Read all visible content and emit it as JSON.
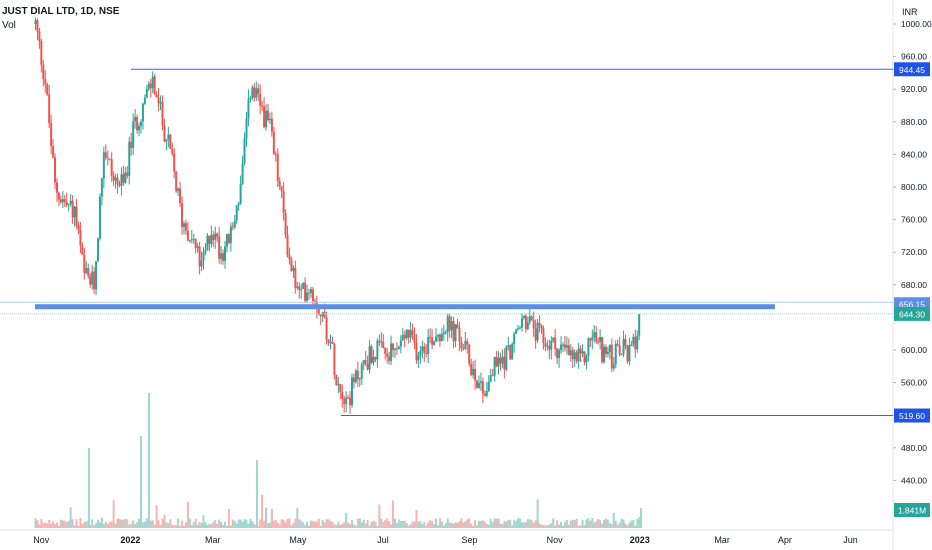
{
  "header": {
    "title": "JUST DIAL LTD, 1D, NSE",
    "volume_label": "Vol",
    "currency": "INR"
  },
  "colors": {
    "up": "#26a69a",
    "down": "#ef5350",
    "level_line": "#2962ff",
    "zone": "#5b8ee6",
    "axis_text": "#131722",
    "last_price_tag": "#26a69a",
    "level_tag": "#1e53e5",
    "volume_up": "#9fd8d2",
    "volume_down": "#f6b5b3"
  },
  "chart_data": {
    "type": "candlestick",
    "symbol": "JUST DIAL LTD",
    "interval": "1D",
    "exchange": "NSE",
    "y_axis": {
      "min": 400,
      "max": 1000,
      "ticks": [
        "1000.00",
        "960.00",
        "920.00",
        "880.00",
        "840.00",
        "800.00",
        "760.00",
        "720.00",
        "680.00",
        "640.00",
        "600.00",
        "560.00",
        "520.00",
        "480.00",
        "440.00"
      ]
    },
    "x_axis": {
      "ticks": [
        "Nov",
        "2022",
        "Mar",
        "May",
        "Jul",
        "Sep",
        "Nov",
        "2023",
        "Mar",
        "Apr",
        "Jun"
      ]
    },
    "horizontal_levels": [
      {
        "value": 944.45,
        "label": "944.45"
      },
      {
        "value": 519.6,
        "label": "519.60"
      }
    ],
    "zone": {
      "value": 656.15,
      "label": "656.15"
    },
    "last_price": {
      "value": 644.3,
      "label": "644.30"
    },
    "last_volume": {
      "label": "1.841M"
    },
    "price_path": [
      [
        "2021-10-25",
        1000
      ],
      [
        "2021-11-01",
        930
      ],
      [
        "2021-11-08",
        800
      ],
      [
        "2021-11-15",
        780
      ],
      [
        "2021-11-22",
        770
      ],
      [
        "2021-11-29",
        690
      ],
      [
        "2021-12-06",
        680
      ],
      [
        "2021-12-13",
        850
      ],
      [
        "2021-12-20",
        810
      ],
      [
        "2021-12-27",
        800
      ],
      [
        "2022-01-03",
        870
      ],
      [
        "2022-01-10",
        900
      ],
      [
        "2022-01-17",
        930
      ],
      [
        "2022-01-24",
        880
      ],
      [
        "2022-01-31",
        830
      ],
      [
        "2022-02-07",
        760
      ],
      [
        "2022-02-14",
        740
      ],
      [
        "2022-02-21",
        700
      ],
      [
        "2022-02-28",
        750
      ],
      [
        "2022-03-07",
        720
      ],
      [
        "2022-03-14",
        740
      ],
      [
        "2022-03-21",
        800
      ],
      [
        "2022-03-28",
        920
      ],
      [
        "2022-04-04",
        900
      ],
      [
        "2022-04-11",
        870
      ],
      [
        "2022-04-18",
        800
      ],
      [
        "2022-04-25",
        710
      ],
      [
        "2022-05-02",
        665
      ],
      [
        "2022-05-09",
        680
      ],
      [
        "2022-05-16",
        655
      ],
      [
        "2022-05-23",
        620
      ],
      [
        "2022-05-30",
        560
      ],
      [
        "2022-06-06",
        540
      ],
      [
        "2022-06-13",
        570
      ],
      [
        "2022-06-20",
        590
      ],
      [
        "2022-06-27",
        600
      ],
      [
        "2022-07-04",
        590
      ],
      [
        "2022-07-11",
        600
      ],
      [
        "2022-07-18",
        620
      ],
      [
        "2022-07-25",
        600
      ],
      [
        "2022-08-01",
        610
      ],
      [
        "2022-08-08",
        620
      ],
      [
        "2022-08-15",
        630
      ],
      [
        "2022-08-22",
        620
      ],
      [
        "2022-08-29",
        600
      ],
      [
        "2022-09-05",
        570
      ],
      [
        "2022-09-12",
        550
      ],
      [
        "2022-09-19",
        580
      ],
      [
        "2022-09-26",
        590
      ],
      [
        "2022-10-03",
        610
      ],
      [
        "2022-10-10",
        640
      ],
      [
        "2022-10-17",
        625
      ],
      [
        "2022-10-24",
        610
      ],
      [
        "2022-10-31",
        605
      ],
      [
        "2022-11-07",
        600
      ],
      [
        "2022-11-14",
        590
      ],
      [
        "2022-11-21",
        585
      ],
      [
        "2022-11-28",
        620
      ],
      [
        "2022-12-05",
        600
      ],
      [
        "2022-12-12",
        590
      ],
      [
        "2022-12-19",
        600
      ],
      [
        "2022-12-26",
        595
      ],
      [
        "2023-01-02",
        644.3
      ]
    ]
  }
}
